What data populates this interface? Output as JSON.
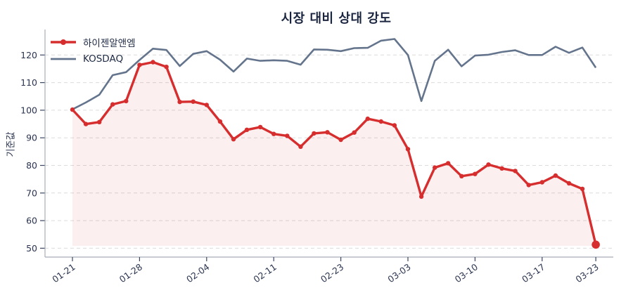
{
  "title": "시장 대비 상대 강도",
  "colors": {
    "background": "#ffffff",
    "title_text": "#1b2540",
    "tick_label_text": "#2b3550",
    "grid_line": "#dcdcdc",
    "axis_spine": "#a8adb8",
    "tick_mark": "#3a4560",
    "series_red": "#d62e2e",
    "series_gray": "#64748c",
    "red_area_fill": "rgba(214,46,46,0.08)"
  },
  "chart_data": {
    "type": "line",
    "title": "시장 대비 상대 강도",
    "xlabel": "",
    "ylabel": "기준값",
    "ylim": [
      47,
      127
    ],
    "yticks": [
      50,
      60,
      70,
      80,
      90,
      100,
      110,
      120
    ],
    "grid": "horizontal-dashed",
    "legend_position": "top-left-inside",
    "n_points": 40,
    "x_tick_positions": [
      0,
      5,
      10,
      15,
      20,
      25,
      30,
      35,
      39
    ],
    "x_tick_labels": [
      "01-21",
      "01-28",
      "02-04",
      "02-11",
      "02-23",
      "03-03",
      "03-10",
      "03-17",
      "03-23"
    ],
    "x_tick_label_rotation_deg": -35,
    "series": [
      {
        "name": "하이젠알앤엠",
        "color": "#d62e2e",
        "marker": "circle",
        "last_point_emphasized": true,
        "area_fill": true,
        "area_fill_baseline": 50.85,
        "values": [
          100.2,
          95.0,
          95.7,
          102.1,
          103.3,
          116.4,
          117.4,
          115.7,
          103.0,
          103.1,
          101.9,
          95.9,
          89.5,
          92.9,
          93.9,
          91.4,
          90.7,
          86.8,
          91.6,
          92.0,
          89.3,
          91.9,
          96.9,
          95.9,
          94.5,
          85.9,
          68.7,
          79.2,
          80.8,
          76.1,
          76.9,
          80.3,
          78.9,
          78.0,
          72.9,
          73.9,
          76.3,
          73.5,
          71.5,
          51.3
        ]
      },
      {
        "name": "KOSDAQ",
        "color": "#64748c",
        "marker": "none",
        "last_point_emphasized": false,
        "area_fill": false,
        "values": [
          100.3,
          102.8,
          105.6,
          112.7,
          113.8,
          118.2,
          122.3,
          121.8,
          116.0,
          120.4,
          121.4,
          118.3,
          114.0,
          118.7,
          117.9,
          118.1,
          117.9,
          116.5,
          122.0,
          121.9,
          121.4,
          122.5,
          122.6,
          125.2,
          125.8,
          120.0,
          103.3,
          117.9,
          121.9,
          115.9,
          119.8,
          120.1,
          121.1,
          121.7,
          120.0,
          120.0,
          123.0,
          120.8,
          122.7,
          115.4
        ]
      }
    ]
  }
}
